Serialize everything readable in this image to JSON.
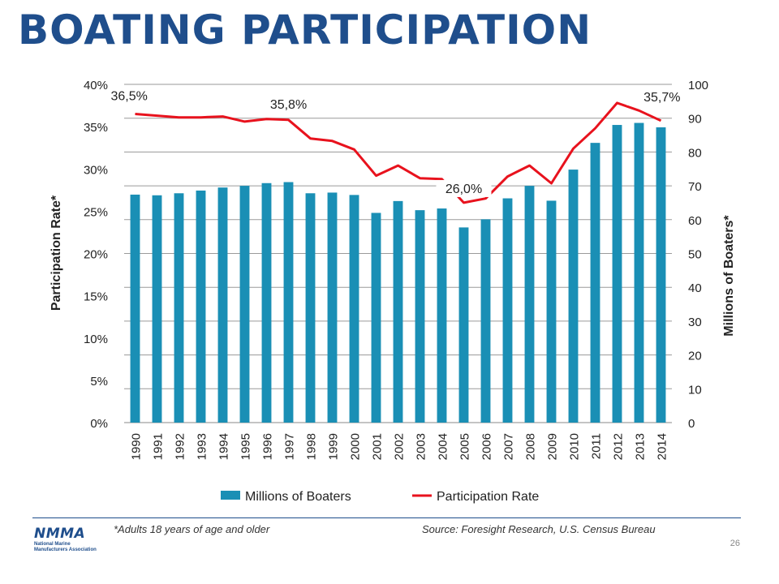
{
  "title": "BOATING PARTICIPATION",
  "footer": {
    "footnote_left": "*Adults 18 years of age and older",
    "footnote_right": "Source: Foresight Research, U.S. Census Bureau",
    "page_number": "26",
    "logo_text": "NMMA",
    "logo_org": "National Marine Manufacturers Association"
  },
  "colors": {
    "bar": "#1a8fb5",
    "line": "#e8121d",
    "title": "#1f4e8c"
  },
  "chart_data": {
    "type": "bar",
    "categories": [
      "1990",
      "1991",
      "1992",
      "1993",
      "1994",
      "1995",
      "1996",
      "1997",
      "1998",
      "1999",
      "2000",
      "2001",
      "2002",
      "2003",
      "2004",
      "2005",
      "2006",
      "2007",
      "2008",
      "2009",
      "2010",
      "2011",
      "2012",
      "2013",
      "2014"
    ],
    "series": [
      {
        "name": "Millions of Boaters",
        "type": "bar",
        "axis": "right",
        "values": [
          67.4,
          67.2,
          67.8,
          68.6,
          69.5,
          70.0,
          70.8,
          71.1,
          67.8,
          68.0,
          67.3,
          62.0,
          65.5,
          62.8,
          63.3,
          57.7,
          60.1,
          66.3,
          70.0,
          65.6,
          74.8,
          82.7,
          88.0,
          88.6,
          87.3
        ]
      },
      {
        "name": "Participation Rate",
        "type": "line",
        "axis": "left",
        "values": [
          36.5,
          36.3,
          36.1,
          36.1,
          36.2,
          35.6,
          35.9,
          35.8,
          33.6,
          33.3,
          32.3,
          29.2,
          30.4,
          28.9,
          28.8,
          26.0,
          26.5,
          29.1,
          30.4,
          28.3,
          32.4,
          34.8,
          37.8,
          36.9,
          35.7
        ]
      }
    ],
    "data_labels": [
      {
        "series": "Participation Rate",
        "category": "1990",
        "text": "36,5%"
      },
      {
        "series": "Participation Rate",
        "category": "1997",
        "text": "35,8%"
      },
      {
        "series": "Participation Rate",
        "category": "2005",
        "text": "26,0%"
      },
      {
        "series": "Participation Rate",
        "category": "2014",
        "text": "35,7%"
      }
    ],
    "ylabel_left": "Participation Rate*",
    "ylabel_right": "Millions of Boaters*",
    "ylim_left": [
      0,
      40
    ],
    "ylim_right": [
      0,
      100
    ],
    "yticks_left": [
      "0%",
      "5%",
      "10%",
      "15%",
      "20%",
      "25%",
      "30%",
      "35%",
      "40%"
    ],
    "yticks_right": [
      "0",
      "10",
      "20",
      "30",
      "40",
      "50",
      "60",
      "70",
      "80",
      "90",
      "100"
    ],
    "grid": true,
    "legend": "bottom"
  }
}
